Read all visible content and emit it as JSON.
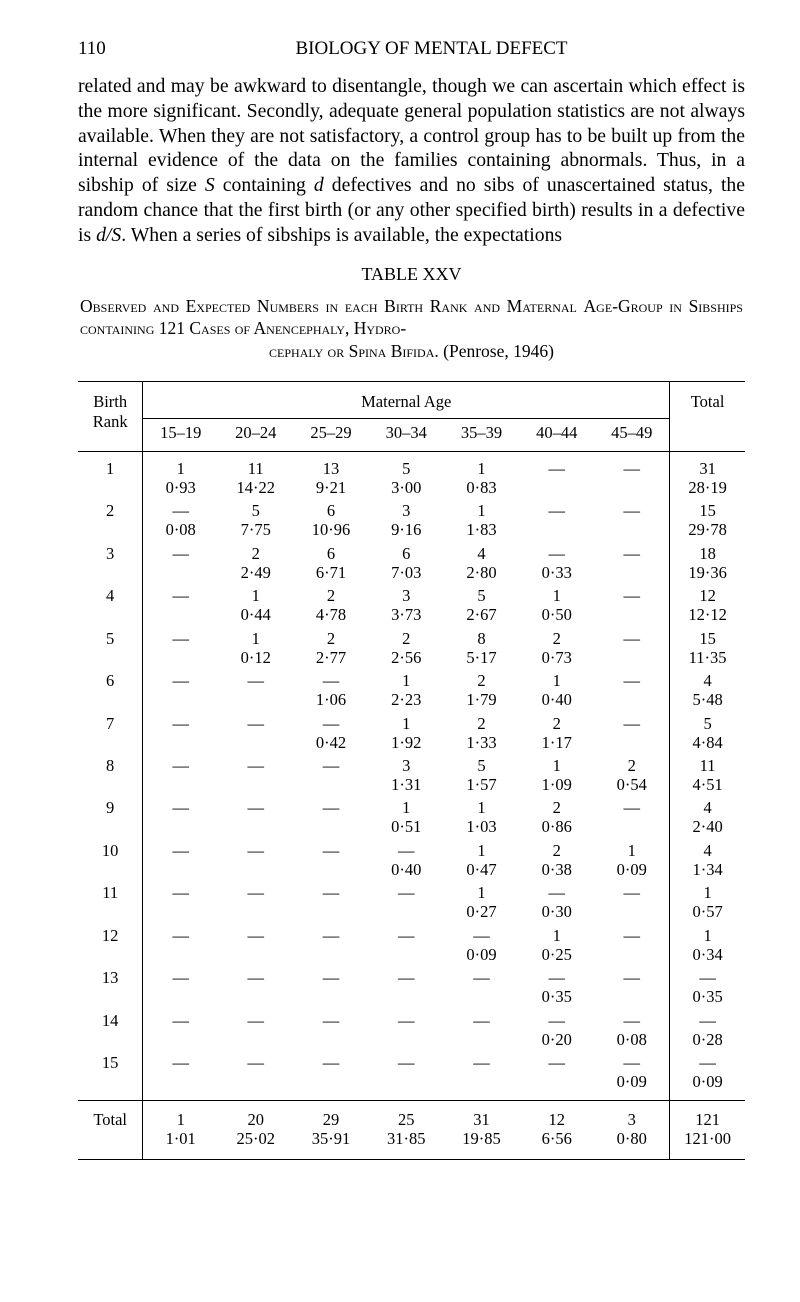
{
  "page_number": "110",
  "running_head": "BIOLOGY OF MENTAL DEFECT",
  "body_paragraph": "related and may be awkward to disentangle, though we can ascertain which effect is the more significant. Secondly, adequate general population statistics are not always available. When they are not satisfactory, a control group has to be built up from the internal evidence of the data on the families containing abnormals. Thus, in a sibship of size ",
  "body_s": "S",
  "body_mid1": " containing ",
  "body_d": "d",
  "body_mid2": " defectives and no sibs of unascertained status, the random chance that the first birth (or any other specified birth) results in a defective is ",
  "body_ds": "d/S",
  "body_end": ". When a series of sibships is available, the expectations",
  "table_label": "TABLE XXV",
  "caption_l1a": "Observed and Expected Numbers in each Birth Rank and Maternal",
  "caption_l2a": "Age-Group in Sibships containing",
  "caption_121": " 121 ",
  "caption_l2b": "Cases of Anencephaly, Hydro-",
  "caption_l3a": "cephaly or Spina Bifida.",
  "caption_penrose": "   (Penrose, 1946)",
  "headers": {
    "birth_rank": "Birth\nRank",
    "maternal_age": "Maternal Age",
    "total": "Total",
    "age_groups": [
      "15–19",
      "20–24",
      "25–29",
      "30–34",
      "35–39",
      "40–44",
      "45–49"
    ]
  },
  "rows": [
    {
      "rank": "1",
      "obs": [
        "1",
        "11",
        "13",
        "5",
        "1",
        "—",
        "—"
      ],
      "exp": [
        "0·93",
        "14·22",
        "9·21",
        "3·00",
        "0·83",
        "",
        ""
      ],
      "tot": "31",
      "tote": "28·19"
    },
    {
      "rank": "2",
      "obs": [
        "—",
        "5",
        "6",
        "3",
        "1",
        "—",
        "—"
      ],
      "exp": [
        "0·08",
        "7·75",
        "10·96",
        "9·16",
        "1·83",
        "",
        ""
      ],
      "tot": "15",
      "tote": "29·78"
    },
    {
      "rank": "3",
      "obs": [
        "—",
        "2",
        "6",
        "6",
        "4",
        "—",
        "—"
      ],
      "exp": [
        "",
        "2·49",
        "6·71",
        "7·03",
        "2·80",
        "0·33",
        ""
      ],
      "tot": "18",
      "tote": "19·36"
    },
    {
      "rank": "4",
      "obs": [
        "—",
        "1",
        "2",
        "3",
        "5",
        "1",
        "—"
      ],
      "exp": [
        "",
        "0·44",
        "4·78",
        "3·73",
        "2·67",
        "0·50",
        ""
      ],
      "tot": "12",
      "tote": "12·12"
    },
    {
      "rank": "5",
      "obs": [
        "—",
        "1",
        "2",
        "2",
        "8",
        "2",
        "—"
      ],
      "exp": [
        "",
        "0·12",
        "2·77",
        "2·56",
        "5·17",
        "0·73",
        ""
      ],
      "tot": "15",
      "tote": "11·35"
    },
    {
      "rank": "6",
      "obs": [
        "—",
        "—",
        "—",
        "1",
        "2",
        "1",
        "—"
      ],
      "exp": [
        "",
        "",
        "1·06",
        "2·23",
        "1·79",
        "0·40",
        ""
      ],
      "tot": "4",
      "tote": "5·48"
    },
    {
      "rank": "7",
      "obs": [
        "—",
        "—",
        "—",
        "1",
        "2",
        "2",
        "—"
      ],
      "exp": [
        "",
        "",
        "0·42",
        "1·92",
        "1·33",
        "1·17",
        ""
      ],
      "tot": "5",
      "tote": "4·84"
    },
    {
      "rank": "8",
      "obs": [
        "—",
        "—",
        "—",
        "3",
        "5",
        "1",
        "2"
      ],
      "exp": [
        "",
        "",
        "",
        "1·31",
        "1·57",
        "1·09",
        "0·54"
      ],
      "tot": "11",
      "tote": "4·51"
    },
    {
      "rank": "9",
      "obs": [
        "—",
        "—",
        "—",
        "1",
        "1",
        "2",
        "—"
      ],
      "exp": [
        "",
        "",
        "",
        "0·51",
        "1·03",
        "0·86",
        ""
      ],
      "tot": "4",
      "tote": "2·40"
    },
    {
      "rank": "10",
      "obs": [
        "—",
        "—",
        "—",
        "—",
        "1",
        "2",
        "1"
      ],
      "exp": [
        "",
        "",
        "",
        "0·40",
        "0·47",
        "0·38",
        "0·09"
      ],
      "tot": "4",
      "tote": "1·34"
    },
    {
      "rank": "11",
      "obs": [
        "—",
        "—",
        "—",
        "—",
        "1",
        "—",
        "—"
      ],
      "exp": [
        "",
        "",
        "",
        "",
        "0·27",
        "0·30",
        ""
      ],
      "tot": "1",
      "tote": "0·57"
    },
    {
      "rank": "12",
      "obs": [
        "—",
        "—",
        "—",
        "—",
        "—",
        "1",
        "—"
      ],
      "exp": [
        "",
        "",
        "",
        "",
        "0·09",
        "0·25",
        ""
      ],
      "tot": "1",
      "tote": "0·34"
    },
    {
      "rank": "13",
      "obs": [
        "—",
        "—",
        "—",
        "—",
        "—",
        "—",
        "—"
      ],
      "exp": [
        "",
        "",
        "",
        "",
        "",
        "0·35",
        ""
      ],
      "tot": "—",
      "tote": "0·35"
    },
    {
      "rank": "14",
      "obs": [
        "—",
        "—",
        "—",
        "—",
        "—",
        "—",
        "—"
      ],
      "exp": [
        "",
        "",
        "",
        "",
        "",
        "0·20",
        "0·08"
      ],
      "tot": "—",
      "tote": "0·28"
    },
    {
      "rank": "15",
      "obs": [
        "—",
        "—",
        "—",
        "—",
        "—",
        "—",
        "—"
      ],
      "exp": [
        "",
        "",
        "",
        "",
        "",
        "",
        "0·09"
      ],
      "tot": "—",
      "tote": "0·09"
    }
  ],
  "total_row": {
    "label": "Total",
    "obs": [
      "1",
      "20",
      "29",
      "25",
      "31",
      "12",
      "3"
    ],
    "exp": [
      "1·01",
      "25·02",
      "35·91",
      "31·85",
      "19·85",
      "6·56",
      "0·80"
    ],
    "tot": "121",
    "tote": "121·00"
  }
}
